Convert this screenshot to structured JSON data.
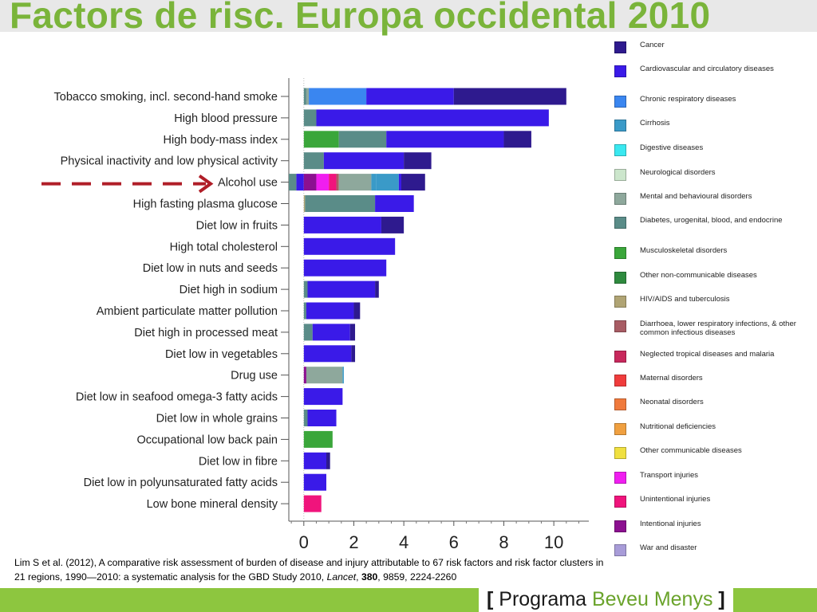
{
  "title": "Factors de risc. Europa occidental 2010",
  "legend": [
    {
      "label": "Cancer",
      "color": "#2e1a8e"
    },
    {
      "label": "Cardiovascular and circulatory diseases",
      "color": "#3a1ae8"
    },
    {
      "label": "Chronic respiratory diseases",
      "color": "#3a86f0"
    },
    {
      "label": "Cirrhosis",
      "color": "#3a9ac8"
    },
    {
      "label": "Digestive diseases",
      "color": "#3ae8f0"
    },
    {
      "label": "Neurological disorders",
      "color": "#cce6cc"
    },
    {
      "label": "Mental and behavioural disorders",
      "color": "#8ea89c"
    },
    {
      "label": "Diabetes, urogenital, blood, and endocrine",
      "color": "#5a8c88"
    },
    {
      "label": "Musculoskeletal disorders",
      "color": "#3aa63a"
    },
    {
      "label": "Other non-communicable diseases",
      "color": "#2e8a3e"
    },
    {
      "label": "HIV/AIDS and tuberculosis",
      "color": "#b0a474"
    },
    {
      "label": "Diarrhoea, lower respiratory infections, & other common infectious diseases",
      "color": "#a85c64"
    },
    {
      "label": "Neglected tropical diseases and malaria",
      "color": "#c8285c"
    },
    {
      "label": "Maternal disorders",
      "color": "#f03c3c"
    },
    {
      "label": "Neonatal disorders",
      "color": "#f07a3c"
    },
    {
      "label": "Nutritional deficiencies",
      "color": "#f0a040"
    },
    {
      "label": "Other communicable diseases",
      "color": "#f0e040"
    },
    {
      "label": "Transport injuries",
      "color": "#f01ef0"
    },
    {
      "label": "Unintentional injuries",
      "color": "#f0147c"
    },
    {
      "label": "Intentional injuries",
      "color": "#8c1090"
    },
    {
      "label": "War and disaster",
      "color": "#a89cd8"
    }
  ],
  "citation": {
    "authors": "Lim S et al. (2012), A comparative risk assessment of burden of disease and injury attributable to 67 risk factors and risk factor clusters in 21 regions, 1990—2010: a systematic analysis for the GBD Study 2010, ",
    "journal": "Lancet",
    "sep1": ", ",
    "volume": "380",
    "rest": ", 9859, 2224-2260"
  },
  "brand": {
    "open": "[",
    "word1": "Programa",
    "word2": "Beveu Menys",
    "close": "]"
  },
  "chart_data": {
    "type": "bar",
    "orientation": "horizontal",
    "stacked": true,
    "xlim": [
      -0.6,
      11.4
    ],
    "xticks": [
      0,
      2,
      4,
      6,
      8,
      10
    ],
    "categories": [
      "Tobacco smoking, incl. second-hand smoke",
      "High blood pressure",
      "High body-mass index",
      "Physical inactivity and low physical activity",
      "Alcohol use",
      "High fasting plasma glucose",
      "Diet low in fruits",
      "High total cholesterol",
      "Diet low in nuts and seeds",
      "Diet high in sodium",
      "Ambient particulate matter pollution",
      "Diet high in processed meat",
      "Diet low in vegetables",
      "Drug use",
      "Diet low in seafood omega-3 fatty acids",
      "Diet low in whole grains",
      "Occupational low back pain",
      "Diet low in fibre",
      "Diet low in polyunsaturated fatty acids",
      "Low bone mineral density"
    ],
    "highlight": "Alcohol use",
    "segments": [
      [
        [
          "#5a8c88",
          0.1
        ],
        [
          "#8ea89c",
          0.1
        ],
        [
          "#3a86f0",
          2.3
        ],
        [
          "#3a1ae8",
          3.5
        ],
        [
          "#2e1a8e",
          4.5
        ]
      ],
      [
        [
          "#5a8c88",
          0.5
        ],
        [
          "#3a1ae8",
          9.3
        ]
      ],
      [
        [
          "#3aa63a",
          1.4
        ],
        [
          "#5a8c88",
          1.9
        ],
        [
          "#3a1ae8",
          4.7
        ],
        [
          "#2e1a8e",
          1.1
        ]
      ],
      [
        [
          "#5a8c88",
          0.8
        ],
        [
          "#3a1ae8",
          3.2
        ],
        [
          "#2e1a8e",
          1.1
        ]
      ],
      [
        [
          "#3a1ae8",
          -0.3
        ],
        [
          "#5a8c88",
          -0.3
        ],
        [
          "#8c1090",
          0.5
        ],
        [
          "#f01ef0",
          0.5
        ],
        [
          "#f0147c",
          0.3
        ],
        [
          "#a85c64",
          0.1
        ],
        [
          "#8ea89c",
          1.3
        ],
        [
          "#3a9ac8",
          0.2
        ],
        [
          "#3a9ac8",
          0.9
        ],
        [
          "#3a1ae8",
          0.1
        ],
        [
          "#2e1a8e",
          0.95
        ]
      ],
      [
        [
          "#b0a474",
          0.05
        ],
        [
          "#5a8c88",
          2.8
        ],
        [
          "#3a1ae8",
          1.55
        ]
      ],
      [
        [
          "#3a1ae8",
          3.1
        ],
        [
          "#2e1a8e",
          0.9
        ]
      ],
      [
        [
          "#3a1ae8",
          3.65
        ]
      ],
      [
        [
          "#3a1ae8",
          3.3
        ]
      ],
      [
        [
          "#5a8c88",
          0.15
        ],
        [
          "#3a1ae8",
          2.7
        ],
        [
          "#2e1a8e",
          0.15
        ]
      ],
      [
        [
          "#5a8c88",
          0.1
        ],
        [
          "#3a1ae8",
          1.9
        ],
        [
          "#2e1a8e",
          0.25
        ]
      ],
      [
        [
          "#5a8c88",
          0.35
        ],
        [
          "#3a1ae8",
          1.5
        ],
        [
          "#2e1a8e",
          0.2
        ]
      ],
      [
        [
          "#3a1ae8",
          1.9
        ],
        [
          "#2e1a8e",
          0.15
        ]
      ],
      [
        [
          "#8c1090",
          0.1
        ],
        [
          "#8ea89c",
          1.45
        ],
        [
          "#3a9ac8",
          0.05
        ]
      ],
      [
        [
          "#3a1ae8",
          1.55
        ]
      ],
      [
        [
          "#5a8c88",
          0.15
        ],
        [
          "#3a1ae8",
          1.15
        ]
      ],
      [
        [
          "#3aa63a",
          1.15
        ]
      ],
      [
        [
          "#3a1ae8",
          0.9
        ],
        [
          "#2e1a8e",
          0.15
        ]
      ],
      [
        [
          "#3a1ae8",
          0.9
        ]
      ],
      [
        [
          "#f0147c",
          0.7
        ]
      ]
    ]
  }
}
